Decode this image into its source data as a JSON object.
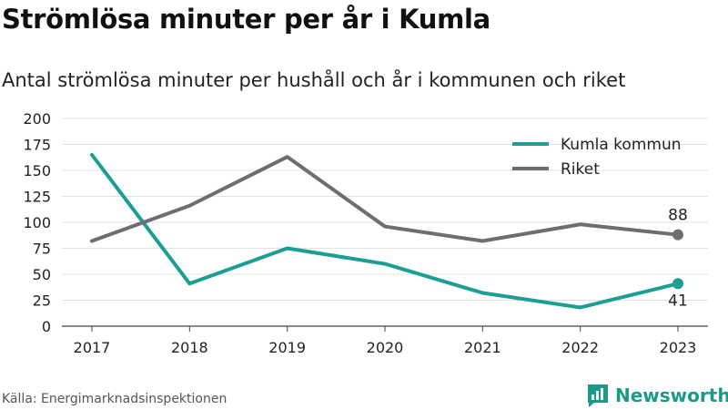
{
  "title": "Strömlösa minuter per år i Kumla",
  "subtitle": "Antal strömlösa minuter per hushåll och år i kommunen och riket",
  "source": "Källa: Energimarknadsinspektionen",
  "brand": "Newsworthy",
  "colors": {
    "kumla": "#1b9f92",
    "riket": "#6d6d72",
    "grid": "#e2e2e2",
    "brand": "#1b9a8a"
  },
  "chart_data": {
    "type": "line",
    "x": [
      "2017",
      "2018",
      "2019",
      "2020",
      "2021",
      "2022",
      "2023"
    ],
    "ylim": [
      0,
      200
    ],
    "yticks": [
      0,
      25,
      50,
      75,
      100,
      125,
      150,
      175,
      200
    ],
    "grid": true,
    "legend_position": "top-right",
    "series": [
      {
        "name": "Kumla kommun",
        "values": [
          165,
          41,
          75,
          60,
          32,
          18,
          41
        ],
        "end_label": "41"
      },
      {
        "name": "Riket",
        "values": [
          82,
          116,
          163,
          96,
          82,
          98,
          88
        ],
        "end_label": "88"
      }
    ]
  }
}
